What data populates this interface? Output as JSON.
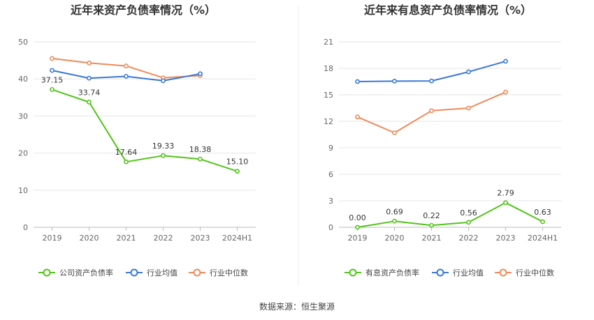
{
  "source": "数据来源：恒生聚源",
  "colors": {
    "company": "#52c41a",
    "industry_avg": "#3a78d8",
    "industry_median": "#f0895a",
    "grid": "#e6e6e6",
    "axis": "#bbbbbb"
  },
  "chart_data": [
    {
      "type": "line",
      "title": "近年来资产负债率情况（%）",
      "categories": [
        "2019",
        "2020",
        "2021",
        "2022",
        "2023",
        "2024H1"
      ],
      "ylim": [
        0,
        50
      ],
      "yticks": [
        0,
        10,
        20,
        30,
        40,
        50
      ],
      "grid": true,
      "legend_position": "bottom",
      "series": [
        {
          "name": "公司资产负债率",
          "color": "#52c41a",
          "values": [
            37.15,
            33.74,
            17.64,
            19.33,
            18.38,
            15.1
          ],
          "labels": [
            "37.15",
            "33.74",
            "17.64",
            "19.33",
            "18.38",
            "15.10"
          ]
        },
        {
          "name": "行业均值",
          "color": "#3a78d8",
          "values": [
            42.3,
            40.2,
            40.7,
            39.5,
            41.4,
            null
          ]
        },
        {
          "name": "行业中位数",
          "color": "#f0895a",
          "values": [
            45.5,
            44.3,
            43.5,
            40.3,
            40.9,
            null
          ]
        }
      ]
    },
    {
      "type": "line",
      "title": "近年来有息资产负债率情况（%）",
      "categories": [
        "2019",
        "2020",
        "2021",
        "2022",
        "2023",
        "2024H1"
      ],
      "ylim": [
        0,
        21
      ],
      "yticks": [
        0,
        3,
        6,
        9,
        12,
        15,
        18,
        21
      ],
      "grid": true,
      "legend_position": "bottom",
      "series": [
        {
          "name": "有息资产负债率",
          "color": "#52c41a",
          "values": [
            0.0,
            0.69,
            0.22,
            0.56,
            2.79,
            0.63
          ],
          "labels": [
            "0.00",
            "0.69",
            "0.22",
            "0.56",
            "2.79",
            "0.63"
          ]
        },
        {
          "name": "行业均值",
          "color": "#3a78d8",
          "values": [
            16.5,
            16.55,
            16.57,
            17.6,
            18.8,
            null
          ]
        },
        {
          "name": "行业中位数",
          "color": "#f0895a",
          "values": [
            12.5,
            10.7,
            13.2,
            13.5,
            15.3,
            null
          ]
        }
      ]
    }
  ]
}
